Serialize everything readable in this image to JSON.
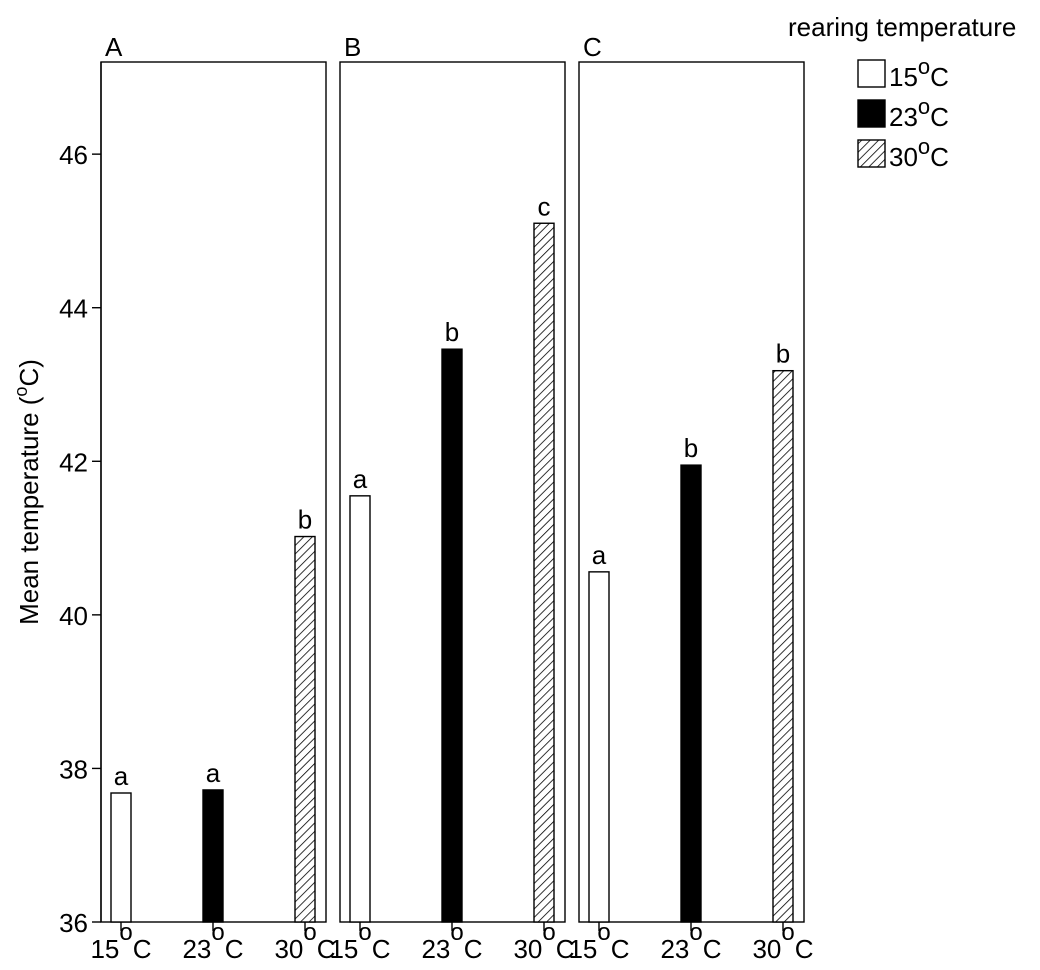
{
  "chart_data": {
    "type": "bar",
    "ylabel": "Mean temperature (",
    "ylabel_sup": "o",
    "ylabel_end": "C)",
    "ylim": [
      36,
      47.2
    ],
    "yticks": [
      "36",
      "38",
      "40",
      "42",
      "44",
      "46"
    ],
    "ytick_values": [
      36,
      38,
      40,
      42,
      44,
      46
    ],
    "categories": [
      {
        "num": "15",
        "sup": "o",
        "unit": "C"
      },
      {
        "num": "23",
        "sup": "o",
        "unit": "C"
      },
      {
        "num": "30",
        "sup": "o",
        "unit": "C"
      }
    ],
    "legend": {
      "title": "rearing temperature",
      "placement": "top-right",
      "entries": [
        {
          "num": "15",
          "sup": "o",
          "unit": "C",
          "fill": "white"
        },
        {
          "num": "23",
          "sup": "o",
          "unit": "C",
          "fill": "black"
        },
        {
          "num": "30",
          "sup": "o",
          "unit": "C",
          "fill": "hatch"
        }
      ]
    },
    "panels": [
      {
        "label": "A",
        "values": [
          37.68,
          37.72,
          41.02
        ],
        "letters": [
          "a",
          "a",
          "b"
        ]
      },
      {
        "label": "B",
        "values": [
          41.55,
          43.46,
          45.1
        ],
        "letters": [
          "a",
          "b",
          "c"
        ]
      },
      {
        "label": "C",
        "values": [
          40.56,
          41.95,
          43.18
        ],
        "letters": [
          "a",
          "b",
          "b"
        ]
      }
    ],
    "colors": {
      "bar_outline": "#000000",
      "bar_dark": "#000000",
      "bar_light": "#ffffff"
    }
  }
}
